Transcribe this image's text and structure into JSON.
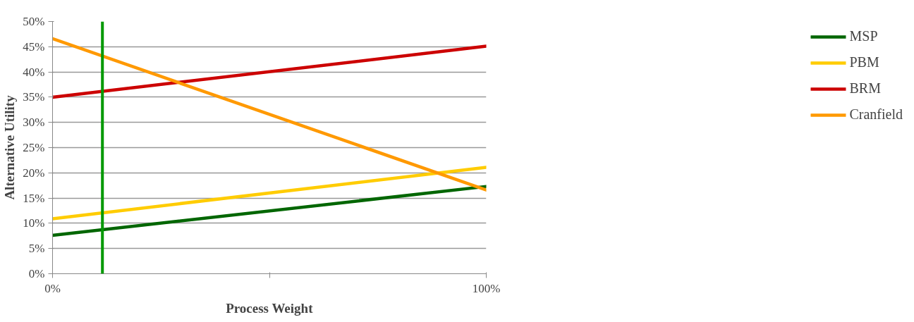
{
  "chart_data": {
    "type": "line",
    "xlabel": "Process Weight",
    "ylabel": "Alternative Utility",
    "x": [
      0,
      100
    ],
    "series": [
      {
        "name": "MSP",
        "color": "#006600",
        "values": [
          7.6,
          17.3
        ]
      },
      {
        "name": "PBM",
        "color": "#ffcc00",
        "values": [
          10.9,
          21.1
        ]
      },
      {
        "name": "BRM",
        "color": "#cc0000",
        "values": [
          35.0,
          45.1
        ]
      },
      {
        "name": "Cranfield",
        "color": "#ff9900",
        "values": [
          46.6,
          16.6
        ]
      }
    ],
    "xlim": [
      0,
      100
    ],
    "xticks": [
      {
        "value": 0,
        "label": "0%"
      },
      {
        "value": 50,
        "label": null
      },
      {
        "value": 100,
        "label": "100%"
      }
    ],
    "ylim": [
      0,
      50
    ],
    "yticks": [
      {
        "value": 0,
        "label": "0%"
      },
      {
        "value": 5,
        "label": "5%"
      },
      {
        "value": 10,
        "label": "10%"
      },
      {
        "value": 15,
        "label": "15%"
      },
      {
        "value": 20,
        "label": "20%"
      },
      {
        "value": 25,
        "label": "25%"
      },
      {
        "value": 30,
        "label": "30%"
      },
      {
        "value": 35,
        "label": "35%"
      },
      {
        "value": 40,
        "label": "40%"
      },
      {
        "value": 45,
        "label": "45%"
      },
      {
        "value": 50,
        "label": "50%"
      }
    ],
    "ref_lines": [
      {
        "axis": "x",
        "value": 11.5,
        "color": "#009900"
      }
    ],
    "grid": "y",
    "legend": "right",
    "marker": "none",
    "line_style": "solid"
  }
}
